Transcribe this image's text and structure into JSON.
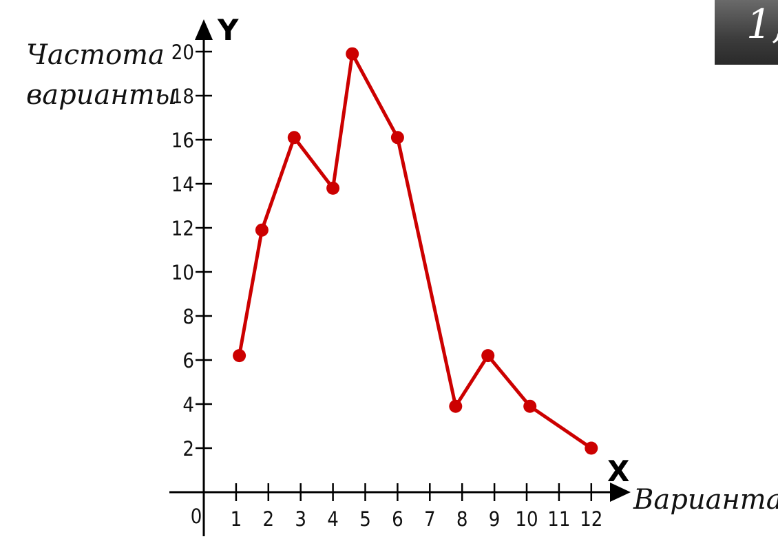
{
  "badge": {
    "text": "1,"
  },
  "chart_data": {
    "type": "line",
    "title": "",
    "ylabel_lines": [
      "Частота",
      "варианты"
    ],
    "xlabel": "Варианта",
    "y_axis_letter": "Y",
    "x_axis_letter": "X",
    "origin_label": "0",
    "x_ticks": [
      1,
      2,
      3,
      4,
      5,
      6,
      7,
      8,
      9,
      10,
      11,
      12
    ],
    "y_ticks": [
      2,
      4,
      6,
      8,
      10,
      12,
      14,
      16,
      18,
      20
    ],
    "xlim": [
      0,
      12
    ],
    "ylim": [
      0,
      20
    ],
    "grid": false,
    "series": [
      {
        "color": "#cc0000",
        "points": [
          {
            "x": 1.1,
            "y": 6.2
          },
          {
            "x": 1.8,
            "y": 11.9
          },
          {
            "x": 2.8,
            "y": 16.1
          },
          {
            "x": 4.0,
            "y": 13.8
          },
          {
            "x": 4.6,
            "y": 19.9
          },
          {
            "x": 6.0,
            "y": 16.1
          },
          {
            "x": 7.8,
            "y": 3.9
          },
          {
            "x": 8.8,
            "y": 6.2
          },
          {
            "x": 10.1,
            "y": 3.9
          },
          {
            "x": 12.0,
            "y": 2.0
          }
        ]
      }
    ]
  }
}
